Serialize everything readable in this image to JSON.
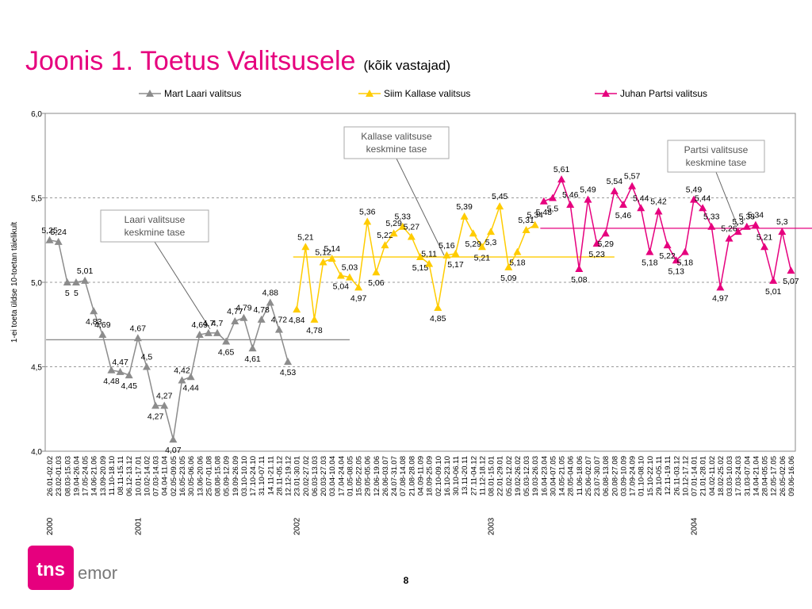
{
  "chart_data": {
    "type": "line",
    "title": "Joonis 1. Toetus Valitsusele",
    "subtitle": "(kõik vastajad)",
    "y_label": "1-ei toeta üldse  10-toetan täielikult",
    "categories": [
      "26.01-02.02",
      "23.02-01.03",
      "08.03-15.03",
      "19.04-26.04",
      "17.05-24.05",
      "14.06-21.06",
      "13.09-20.09",
      "11.10-18.10",
      "08.11-15.11",
      "06.12-13.12",
      "10.01-17.01",
      "10.02-14.02",
      "07.03-14.03",
      "04.04-11.04",
      "02.05-09.05",
      "16.05-23.05",
      "30.05-06.06",
      "13.06-20.06",
      "25.07-01.08",
      "08.08-15.08",
      "05.09-12.09",
      "19.09-26.09",
      "03.10-10.10",
      "17.10-24.10",
      "31.10-07.11",
      "14.11-21.11",
      "28.11-05.12",
      "12.12-19.12",
      "23.01-30.01",
      "20.02-27.02",
      "06.03-13.03",
      "20.03-27.03",
      "03.04-10.04",
      "17.04-24.04",
      "01.05-08.05",
      "15.05-22.05",
      "29.05-05.06",
      "12.06-19.06",
      "26.06-03.07",
      "24.07-31.07",
      "07.08-14.08",
      "21.08-28.08",
      "04.09-11.09",
      "18.09-25.09",
      "02.10-09.10",
      "16.10-23.10",
      "30.10-06.11",
      "13.11-20.11",
      "27.11-04.12",
      "11.12-18.12",
      "08.01-15.01",
      "22.01-29.01",
      "05.02-12.02",
      "19.02-26.02",
      "05.03-12.03",
      "19.03-26.03",
      "16.04-23.04",
      "30.04-07.05",
      "14.05-21.05",
      "28.05-04.06",
      "11.06-18.06",
      "25.06-02.07",
      "23.07-30.07",
      "06.08-13.08",
      "20.08-27.08",
      "03.09-10.09",
      "17.09-24.09",
      "01.10-08.10",
      "15.10-22.10",
      "29.10-05.11",
      "12.11-19.11",
      "26.11-03.12",
      "10.12-17.12",
      "07.01-14.01",
      "21.01-28.01",
      "04.02-11.02",
      "18.02-25.02",
      "03.03-10.03",
      "17.03-24.03",
      "31.03-07.04",
      "14.04-21.04",
      "28.04-05.05",
      "12.05-17.05",
      "26.05-02.06",
      "09.06-16.06"
    ],
    "years": [
      {
        "year": "2000",
        "start": 0
      },
      {
        "year": "2001",
        "start": 10
      },
      {
        "year": "2002",
        "start": 28
      },
      {
        "year": "2003",
        "start": 50
      },
      {
        "year": "2004",
        "start": 73
      }
    ],
    "series": [
      {
        "name": "Mart Laari valitsus",
        "color": "#8c8c8c",
        "values": [
          5.25,
          5.24,
          5,
          5,
          5.01,
          4.83,
          4.69,
          4.48,
          4.47,
          4.45,
          4.67,
          4.5,
          4.27,
          4.27,
          4.07,
          4.42,
          4.44,
          4.69,
          4.7,
          4.7,
          4.65,
          4.77,
          4.79,
          4.61,
          4.78,
          4.88,
          4.72,
          4.53,
          null,
          null,
          null,
          null,
          null,
          null,
          null,
          null,
          null,
          null,
          null,
          null,
          null,
          null,
          null,
          null,
          null,
          null,
          null,
          null,
          null,
          null,
          null,
          null,
          null,
          null,
          null,
          null,
          null,
          null,
          null,
          null,
          null,
          null,
          null,
          null,
          null,
          null,
          null,
          null,
          null,
          null,
          null,
          null,
          null,
          null,
          null,
          null,
          null,
          null,
          null,
          null,
          null,
          null,
          null,
          null,
          null
        ],
        "value_labels": [
          "5,25",
          "5,24",
          "5",
          "5",
          "5,01",
          "4,83",
          "4,69",
          "4,48",
          "4,47",
          "4,45",
          "4,67",
          "4,5",
          "4,27",
          "4,27",
          "4,07",
          "4,42",
          "4,44",
          "4,69",
          "4,7",
          "4,7",
          "4,65",
          "4,77",
          "4,79",
          "4,61",
          "4,78",
          "4,88",
          "4,72",
          "4,53",
          null,
          null,
          null,
          null,
          null,
          null,
          null,
          null,
          null,
          null,
          null,
          null,
          null,
          null,
          null,
          null,
          null,
          null,
          null,
          null,
          null,
          null,
          null,
          null,
          null,
          null,
          null,
          null,
          null,
          null,
          null,
          null,
          null,
          null,
          null,
          null,
          null,
          null,
          null,
          null,
          null,
          null,
          null,
          null,
          null,
          null,
          null,
          null,
          null,
          null,
          null,
          null,
          null,
          null,
          null,
          null,
          null
        ]
      },
      {
        "name": "Siim Kallase valitsus",
        "color": "#ffcc00",
        "values": [
          null,
          null,
          null,
          null,
          null,
          null,
          null,
          null,
          null,
          null,
          null,
          null,
          null,
          null,
          null,
          null,
          null,
          null,
          null,
          null,
          null,
          null,
          null,
          null,
          null,
          null,
          null,
          null,
          4.84,
          5.21,
          4.78,
          5.12,
          5.14,
          5.04,
          5.03,
          4.97,
          5.36,
          5.06,
          5.22,
          5.29,
          5.33,
          5.27,
          5.15,
          5.11,
          4.85,
          5.16,
          5.17,
          5.39,
          5.29,
          5.21,
          5.3,
          5.45,
          5.09,
          5.18,
          5.31,
          5.34,
          null,
          null,
          null,
          null,
          null,
          null,
          null,
          null,
          null,
          null,
          null,
          null,
          null,
          null,
          null,
          null,
          null,
          null,
          null,
          null,
          null,
          null,
          null,
          null,
          null,
          null,
          null,
          null,
          null
        ],
        "value_labels": [
          null,
          null,
          null,
          null,
          null,
          null,
          null,
          null,
          null,
          null,
          null,
          null,
          null,
          null,
          null,
          null,
          null,
          null,
          null,
          null,
          null,
          null,
          null,
          null,
          null,
          null,
          null,
          null,
          "4,84",
          "5,21",
          "4,78",
          "5,12",
          "5,14",
          "5,04",
          "5,03",
          "4,97",
          "5,36",
          "5,06",
          "5,22",
          "5,29",
          "5,33",
          "5,27",
          "5,15",
          "5,11",
          "4,85",
          "5,16",
          "5,17",
          "5,39",
          "5,29",
          "5,21",
          "5,3",
          "5,45",
          "5,09",
          "5,18",
          "5,31",
          "5,34",
          null,
          null,
          null,
          null,
          null,
          null,
          null,
          null,
          null,
          null,
          null,
          null,
          null,
          null,
          null,
          null,
          null,
          null,
          null,
          null,
          null,
          null,
          null,
          null,
          null,
          null,
          null,
          null,
          null
        ]
      },
      {
        "name": "Juhan Partsi valitsus",
        "color": "#e6007e",
        "values": [
          null,
          null,
          null,
          null,
          null,
          null,
          null,
          null,
          null,
          null,
          null,
          null,
          null,
          null,
          null,
          null,
          null,
          null,
          null,
          null,
          null,
          null,
          null,
          null,
          null,
          null,
          null,
          null,
          null,
          null,
          null,
          null,
          null,
          null,
          null,
          null,
          null,
          null,
          null,
          null,
          null,
          null,
          null,
          null,
          null,
          null,
          null,
          null,
          null,
          null,
          null,
          null,
          null,
          null,
          null,
          null,
          5.48,
          5.5,
          5.61,
          5.46,
          5.08,
          5.49,
          5.23,
          5.29,
          5.54,
          5.46,
          5.57,
          5.44,
          5.18,
          5.42,
          5.22,
          5.13,
          5.18,
          5.49,
          5.44,
          5.33,
          4.97,
          5.26,
          5.3,
          5.33,
          5.34,
          5.21,
          5.01,
          5.3,
          5.07
        ],
        "value_labels": [
          null,
          null,
          null,
          null,
          null,
          null,
          null,
          null,
          null,
          null,
          null,
          null,
          null,
          null,
          null,
          null,
          null,
          null,
          null,
          null,
          null,
          null,
          null,
          null,
          null,
          null,
          null,
          null,
          null,
          null,
          null,
          null,
          null,
          null,
          null,
          null,
          null,
          null,
          null,
          null,
          null,
          null,
          null,
          null,
          null,
          null,
          null,
          null,
          null,
          null,
          null,
          null,
          null,
          null,
          null,
          null,
          "5,48",
          "5,5",
          "5,61",
          "5,46",
          "5,08",
          "5,49",
          "5,23",
          "5,29",
          "5,54",
          "5,46",
          "5,57",
          "5,44",
          "5,18",
          "5,42",
          "5,22",
          "5,13",
          "5,18",
          "5,49",
          "5,44",
          "5,33",
          "4,97",
          "5,26",
          "5,3",
          "5,33",
          "5,34",
          "5,21",
          "5,01",
          "5,3",
          "5,07"
        ]
      }
    ],
    "averages": [
      {
        "label": "Laari valitsuse keskmine tase",
        "value": 4.66
      },
      {
        "label": "Kallase valitsuse keskmine tase",
        "value": 5.15
      },
      {
        "label": "Partsi valitsuse keskmine tase",
        "value": 5.32
      }
    ],
    "ylim": [
      4,
      6
    ],
    "yticks": [
      {
        "value": 4,
        "label": "4,0"
      },
      {
        "value": 4.5,
        "label": "4,5"
      },
      {
        "value": 5,
        "label": "5,0"
      },
      {
        "value": 5.5,
        "label": "5,5"
      },
      {
        "value": 6,
        "label": "6,0"
      }
    ],
    "grid": true
  },
  "page_number": "8",
  "logo": {
    "mark": "tns",
    "name": "emor"
  }
}
